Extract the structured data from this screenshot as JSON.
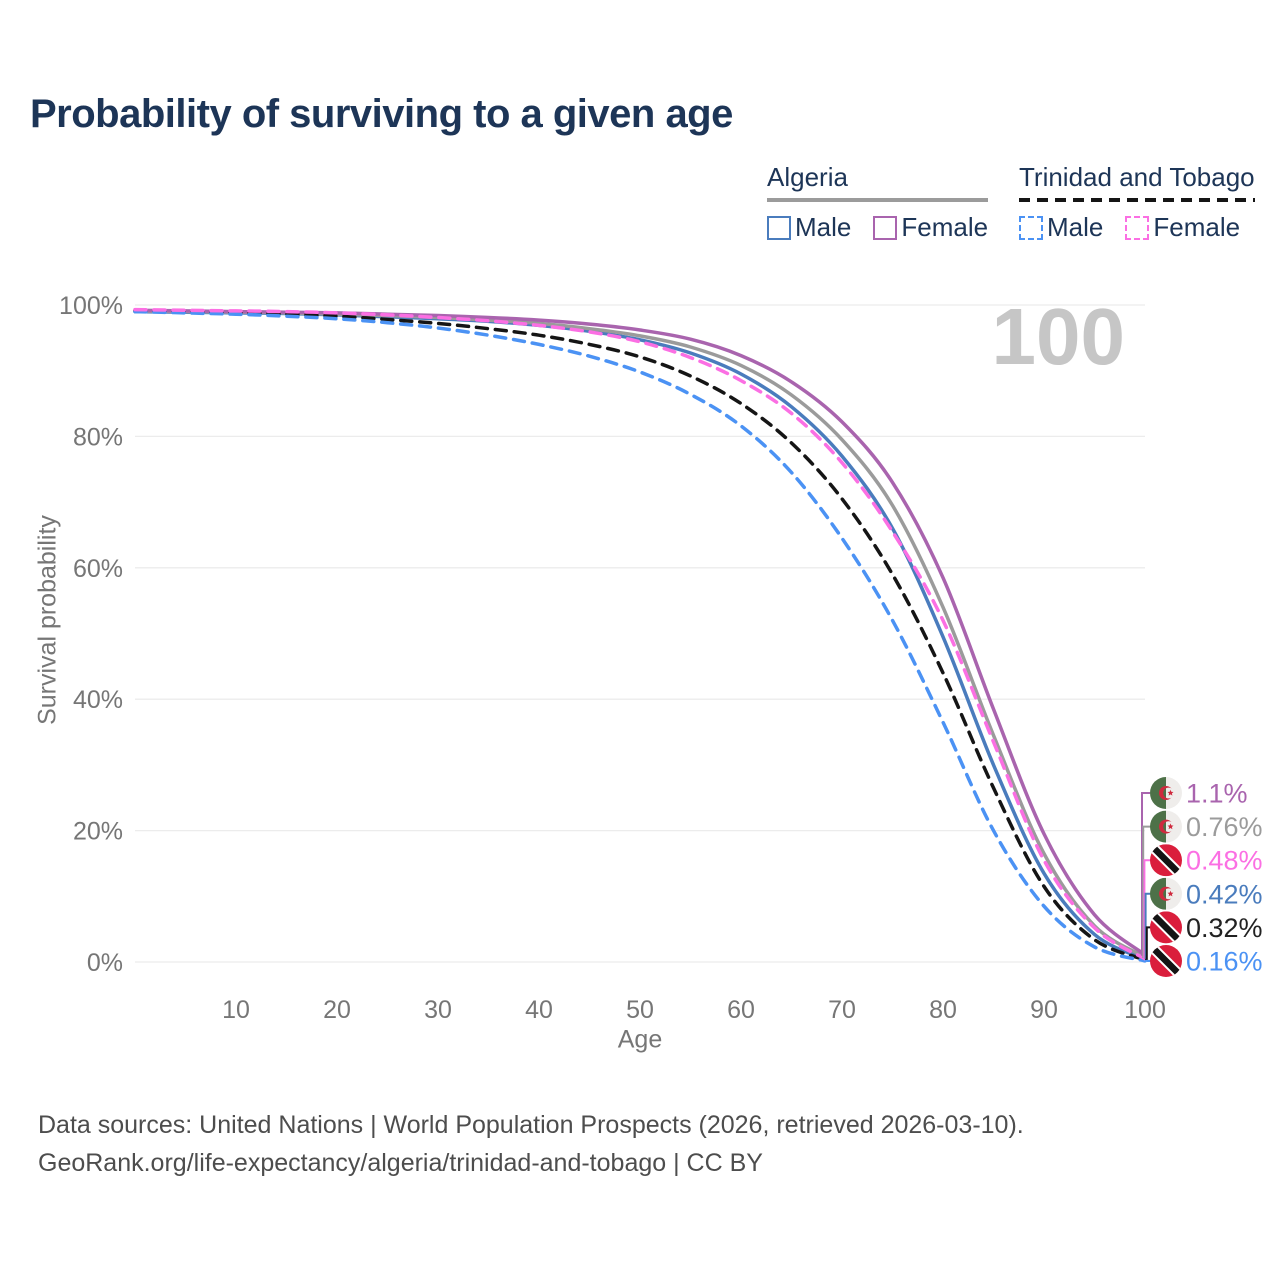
{
  "page": {
    "title": "Probability of surviving to a given age",
    "watermark_age": "100"
  },
  "legend": {
    "groups": [
      {
        "label": "Algeria",
        "underline_color": "#9b9b9b",
        "underline_dashed": false,
        "items": [
          {
            "label": "Male",
            "color": "#4a7cbd",
            "dashed": false
          },
          {
            "label": "Female",
            "color": "#a964ae",
            "dashed": false
          }
        ]
      },
      {
        "label": "Trinidad and Tobago",
        "underline_color": "#151515",
        "underline_dashed": true,
        "items": [
          {
            "label": "Male",
            "color": "#4b92f4",
            "dashed": true
          },
          {
            "label": "Female",
            "color": "#fb6fe3",
            "dashed": true
          }
        ]
      }
    ]
  },
  "chart_data": {
    "type": "line",
    "title": "Probability of surviving to a given age",
    "xlabel": "Age",
    "ylabel": "Survival probability",
    "xlim": [
      0,
      100
    ],
    "ylim": [
      0,
      100
    ],
    "x_ticks": [
      10,
      20,
      30,
      40,
      50,
      60,
      70,
      80,
      90,
      100
    ],
    "y_ticks": [
      0,
      20,
      40,
      60,
      80,
      100
    ],
    "y_tick_suffix": "%",
    "grid": true,
    "legend_position": "top-right",
    "watermark_age": "100",
    "x": [
      0,
      5,
      10,
      15,
      20,
      25,
      30,
      35,
      40,
      45,
      50,
      55,
      60,
      65,
      70,
      75,
      80,
      85,
      90,
      95,
      100
    ],
    "series": [
      {
        "name": "Algeria Male",
        "country": "algeria",
        "sex": "male",
        "color": "#4a7cbd",
        "dashed": false,
        "end_label": "0.42%",
        "values": [
          99.0,
          98.9,
          98.8,
          98.7,
          98.5,
          98.2,
          97.9,
          97.5,
          96.9,
          96.0,
          94.7,
          92.7,
          89.5,
          84.5,
          77.0,
          66.0,
          49.5,
          30.0,
          13.5,
          4.2,
          0.42
        ]
      },
      {
        "name": "Algeria",
        "country": "algeria",
        "sex": "all",
        "color": "#9b9b9b",
        "dashed": false,
        "end_label": "0.76%",
        "values": [
          99.1,
          99.0,
          98.9,
          98.8,
          98.6,
          98.4,
          98.1,
          97.7,
          97.2,
          96.4,
          95.3,
          93.6,
          90.8,
          86.3,
          79.5,
          69.5,
          54.0,
          34.5,
          16.5,
          5.5,
          0.76
        ]
      },
      {
        "name": "Algeria Female",
        "country": "algeria",
        "sex": "female",
        "color": "#a964ae",
        "dashed": false,
        "end_label": "1.1%",
        "values": [
          99.2,
          99.1,
          99.0,
          98.9,
          98.8,
          98.6,
          98.4,
          98.1,
          97.7,
          97.1,
          96.2,
          94.8,
          92.3,
          88.3,
          82.2,
          73.0,
          58.5,
          38.5,
          19.5,
          7.2,
          1.1
        ]
      },
      {
        "name": "Trinidad and Tobago",
        "country": "trinidad-and-tobago",
        "sex": "all",
        "color": "#151515",
        "dashed": true,
        "end_label": "0.32%",
        "values": [
          99.1,
          99.0,
          98.8,
          98.6,
          98.3,
          97.8,
          97.2,
          96.4,
          95.4,
          94.0,
          92.1,
          89.2,
          85.0,
          79.0,
          70.5,
          59.0,
          44.0,
          26.5,
          11.5,
          3.4,
          0.32
        ]
      },
      {
        "name": "Trinidad and Tobago Male",
        "country": "trinidad-and-tobago",
        "sex": "male",
        "color": "#4b92f4",
        "dashed": true,
        "end_label": "0.16%",
        "values": [
          99.0,
          98.8,
          98.6,
          98.3,
          97.9,
          97.3,
          96.5,
          95.4,
          94.0,
          92.2,
          89.8,
          86.4,
          81.6,
          74.5,
          64.5,
          52.0,
          36.5,
          20.0,
          8.5,
          2.3,
          0.16
        ]
      },
      {
        "name": "Trinidad and Tobago Female",
        "country": "trinidad-and-tobago",
        "sex": "female",
        "color": "#fb6fe3",
        "dashed": true,
        "end_label": "0.48%",
        "values": [
          99.3,
          99.2,
          99.1,
          99.0,
          98.8,
          98.5,
          98.1,
          97.6,
          96.9,
          95.9,
          94.4,
          92.0,
          88.5,
          83.5,
          76.0,
          65.5,
          52.0,
          33.5,
          15.5,
          5.2,
          0.48
        ]
      }
    ],
    "end_labels_sorted": [
      "1.1%",
      "0.76%",
      "0.48%",
      "0.42%",
      "0.32%",
      "0.16%"
    ]
  },
  "footer": {
    "line1": "Data sources: United Nations | World Population Prospects (2026, retrieved 2026-03-10).",
    "line2": "GeoRank.org/life-expectancy/algeria/trinidad-and-tobago | CC BY"
  }
}
